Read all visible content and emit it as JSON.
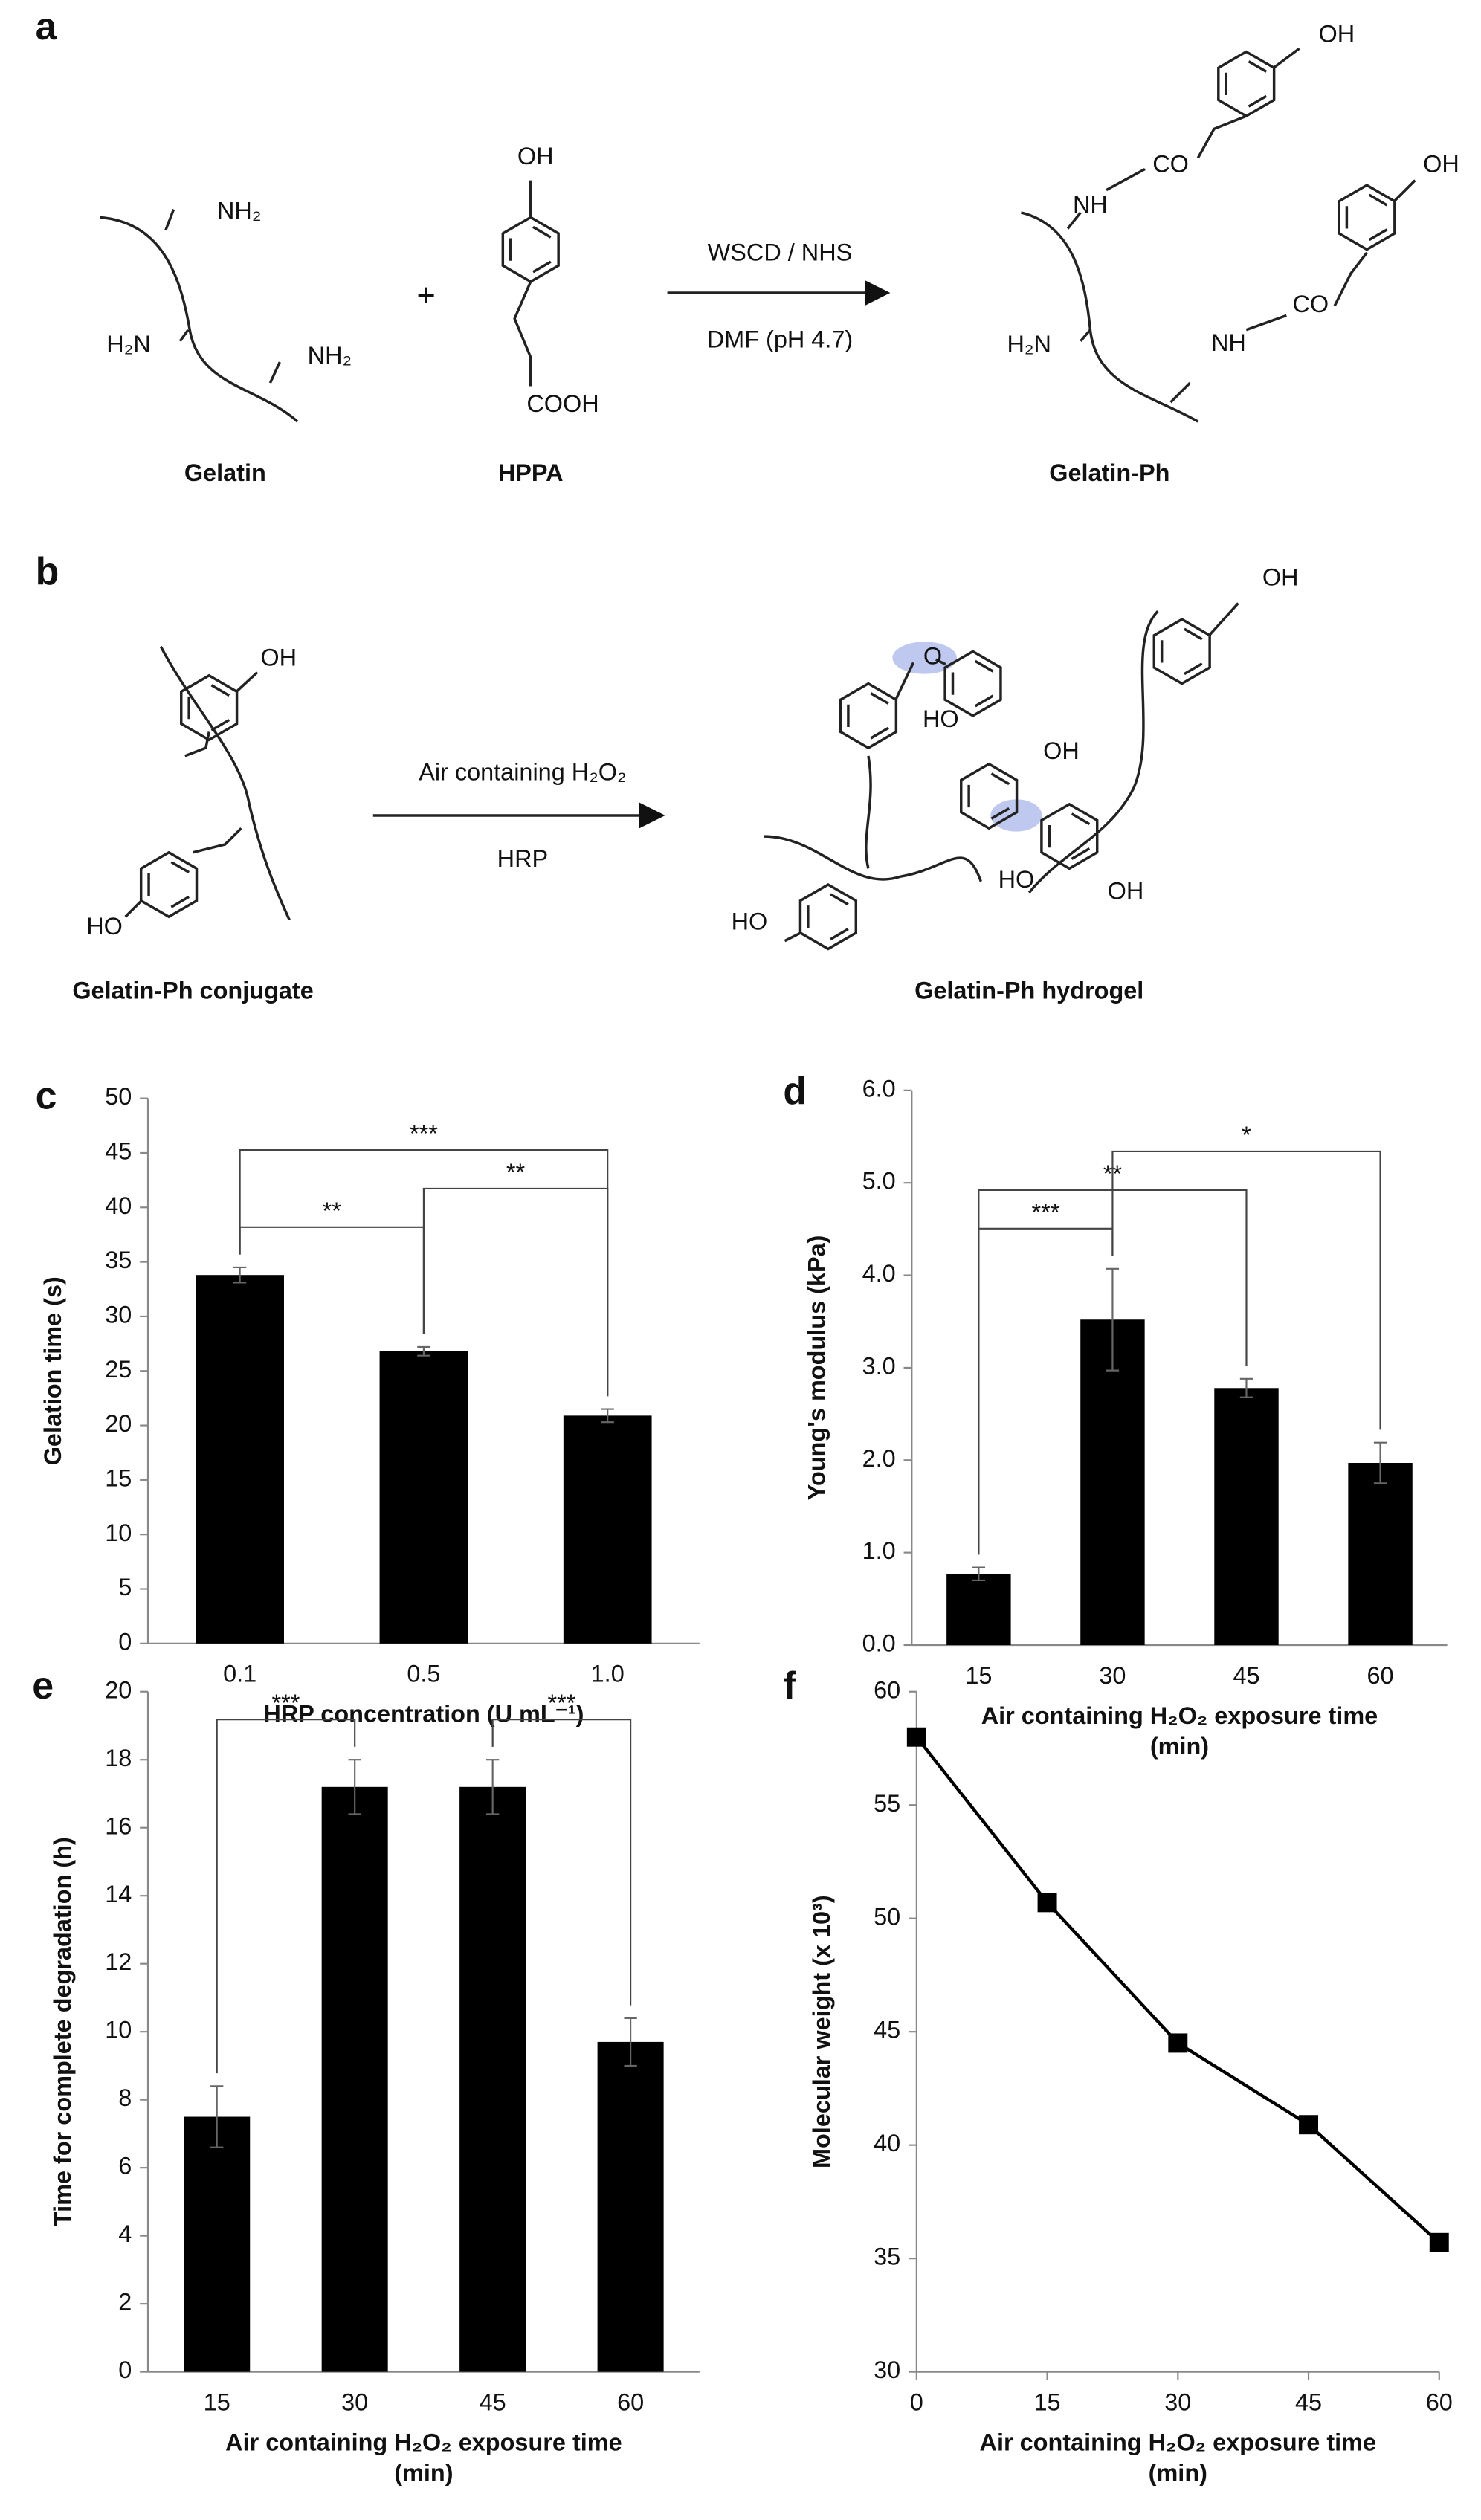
{
  "panel_a": {
    "label": "a",
    "gelatin": {
      "title": "Gelatin",
      "groups": [
        "NH₂",
        "H₂N",
        "NH₂"
      ]
    },
    "plus": "+",
    "hppa": {
      "title": "HPPA",
      "groups": [
        "OH",
        "COOH"
      ]
    },
    "reagents": [
      "WSCD / NHS",
      "DMF (pH 4.7)"
    ],
    "product": {
      "title": "Gelatin-Ph",
      "groups": [
        "OH",
        "CO",
        "NH",
        "OH",
        "CO",
        "NH",
        "H₂N"
      ]
    }
  },
  "panel_b": {
    "label": "b",
    "conjugate": {
      "title": "Gelatin-Ph conjugate",
      "groups": [
        "OH",
        "HO"
      ]
    },
    "conditions": [
      "Air containing H₂O₂",
      "HRP"
    ],
    "hydrogel": {
      "title": "Gelatin-Ph hydrogel",
      "groups": [
        "O",
        "OH",
        "HO",
        "OH",
        "HO",
        "OH",
        "HO"
      ]
    }
  },
  "chart_data": [
    {
      "panel_label": "c",
      "type": "bar",
      "ylabel": "Gelation time (s)",
      "xlabel": [
        "HRP concentration (U mL⁻¹)"
      ],
      "categories": [
        "0.1",
        "0.5",
        "1.0"
      ],
      "values": [
        33.8,
        26.8,
        20.9
      ],
      "errors": [
        0.7,
        0.4,
        0.6
      ],
      "color": "#000000",
      "ylim": [
        0,
        50
      ],
      "yticks": [
        0,
        5,
        10,
        15,
        20,
        25,
        30,
        35,
        40,
        45,
        50
      ],
      "annotations": [
        {
          "text": "**",
          "between": [
            "0.1",
            "0.5"
          ]
        },
        {
          "text": "**",
          "between": [
            "0.5",
            "1.0"
          ]
        },
        {
          "text": "***",
          "between": [
            "0.1",
            "1.0"
          ]
        }
      ]
    },
    {
      "panel_label": "d",
      "type": "bar",
      "ylabel": "Young's modulus (kPa)",
      "xlabel": [
        "Air containing H₂O₂ exposure time",
        "(min)"
      ],
      "categories": [
        "15",
        "30",
        "45",
        "60"
      ],
      "values": [
        0.77,
        3.52,
        2.78,
        1.97
      ],
      "errors": [
        0.07,
        0.55,
        0.1,
        0.22
      ],
      "color": "#000000",
      "ylim": [
        0,
        6
      ],
      "yticks": [
        {
          "value": 0,
          "label": "0.0"
        },
        {
          "value": 1,
          "label": "1.0"
        },
        {
          "value": 2,
          "label": "2.0"
        },
        {
          "value": 3,
          "label": "3.0"
        },
        {
          "value": 4,
          "label": "4.0"
        },
        {
          "value": 5,
          "label": "5.0"
        },
        {
          "value": 6,
          "label": "6.0"
        }
      ],
      "annotations": [
        {
          "text": "***",
          "between": [
            "15",
            "30"
          ]
        },
        {
          "text": "**",
          "between": [
            "15",
            "45"
          ]
        },
        {
          "text": "*",
          "between": [
            "30",
            "60"
          ]
        }
      ]
    },
    {
      "panel_label": "e",
      "type": "bar",
      "ylabel": "Time for complete degradation (h)",
      "xlabel": [
        "Air containing H₂O₂ exposure time",
        "(min)"
      ],
      "categories": [
        "15",
        "30",
        "45",
        "60"
      ],
      "values": [
        7.5,
        17.2,
        17.2,
        9.7
      ],
      "errors": [
        0.9,
        0.8,
        0.8,
        0.7
      ],
      "color": "#000000",
      "ylim": [
        0,
        20
      ],
      "yticks": [
        0,
        2,
        4,
        6,
        8,
        10,
        12,
        14,
        16,
        18,
        20
      ],
      "annotations": [
        {
          "text": "***",
          "between": [
            "15",
            "30"
          ]
        },
        {
          "text": "***",
          "between": [
            "45",
            "60"
          ]
        }
      ]
    },
    {
      "panel_label": "f",
      "type": "line",
      "ylabel": "Molecular weight (x 10³)",
      "xlabel": [
        "Air containing H₂O₂ exposure time",
        "(min)"
      ],
      "x": [
        0,
        15,
        30,
        45,
        60
      ],
      "values": [
        58,
        50.7,
        44.5,
        40.9,
        35.7
      ],
      "color": "#000000",
      "xlim": [
        0,
        60
      ],
      "xticks": [
        0,
        15,
        30,
        45,
        60
      ],
      "ylim": [
        30,
        60
      ],
      "yticks": [
        30,
        35,
        40,
        45,
        50,
        55,
        60
      ]
    }
  ]
}
